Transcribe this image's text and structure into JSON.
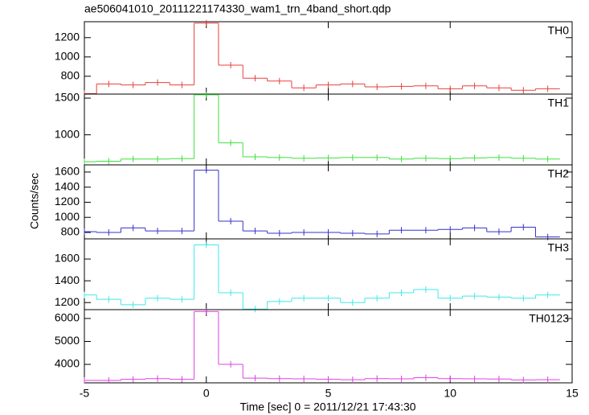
{
  "chart_data": {
    "type": "step",
    "title": "ae506041010_20111221174330_wam1_trn_4band_short.qdp",
    "xlabel": "Time [sec] 0 = 2011/12/21 17:43:30",
    "ylabel": "Counts/sec",
    "xlim": [
      -5,
      15
    ],
    "xticks": [
      -5,
      0,
      5,
      10,
      15
    ],
    "x": [
      -5,
      -4,
      -3,
      -2,
      -1,
      0,
      1,
      2,
      3,
      4,
      5,
      6,
      7,
      8,
      9,
      10,
      11,
      12,
      13,
      14
    ],
    "series": [
      {
        "name": "TH0",
        "color": "#e8403a",
        "ylim": [
          615,
          1365
        ],
        "yticks": [
          800,
          1000,
          1200
        ],
        "values": [
          620,
          720,
          710,
          735,
          710,
          1350,
          915,
          780,
          750,
          680,
          710,
          720,
          690,
          695,
          700,
          670,
          700,
          680,
          655,
          670
        ]
      },
      {
        "name": "TH1",
        "color": "#3ee03e",
        "ylim": [
          590,
          1555
        ],
        "yticks": [
          1000,
          1500
        ],
        "values": [
          633,
          640,
          670,
          670,
          675,
          1545,
          890,
          700,
          690,
          680,
          685,
          690,
          690,
          670,
          680,
          675,
          685,
          690,
          680,
          670
        ]
      },
      {
        "name": "TH2",
        "color": "#3333cc",
        "ylim": [
          715,
          1695
        ],
        "yticks": [
          800,
          1000,
          1200,
          1400,
          1600
        ],
        "values": [
          810,
          800,
          860,
          820,
          820,
          1625,
          950,
          820,
          790,
          800,
          800,
          790,
          780,
          830,
          830,
          840,
          860,
          810,
          870,
          740
        ]
      },
      {
        "name": "TH3",
        "color": "#40e8e8",
        "ylim": [
          1135,
          1785
        ],
        "yticks": [
          1200,
          1400,
          1600
        ],
        "values": [
          1270,
          1230,
          1180,
          1240,
          1230,
          1730,
          1290,
          1140,
          1210,
          1240,
          1240,
          1200,
          1240,
          1290,
          1320,
          1240,
          1260,
          1250,
          1240,
          1270
        ]
      },
      {
        "name": "TH0123",
        "color": "#e040e0",
        "ylim": [
          3195,
          6385
        ],
        "yticks": [
          4000,
          5000,
          6000
        ],
        "values": [
          3300,
          3300,
          3350,
          3380,
          3350,
          6300,
          4000,
          3400,
          3380,
          3370,
          3350,
          3330,
          3380,
          3370,
          3420,
          3380,
          3370,
          3360,
          3320,
          3330
        ]
      }
    ]
  }
}
